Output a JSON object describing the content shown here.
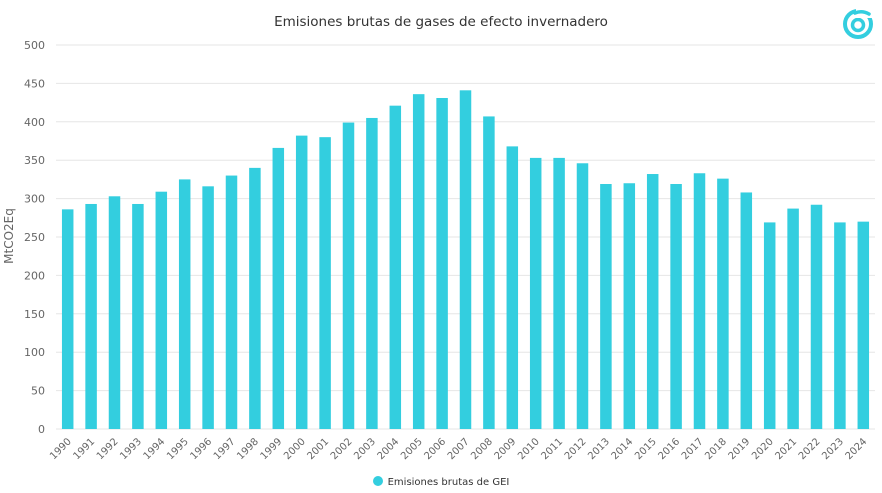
{
  "colors": {
    "bar": "#33cedf",
    "grid": "#e6e6e6",
    "text": "#666666",
    "logo": "#33cedf"
  },
  "logo": {
    "icon": "swirl-logo-icon"
  },
  "chart_data": {
    "type": "bar",
    "title": "Emisiones brutas de gases de efecto invernadero",
    "xlabel": "",
    "ylabel": "MtCO2Eq",
    "ylim": [
      0,
      500
    ],
    "yticks": [
      0,
      50,
      100,
      150,
      200,
      250,
      300,
      350,
      400,
      450,
      500
    ],
    "grid": true,
    "legend_position": "bottom-center",
    "categories": [
      "1990",
      "1991",
      "1992",
      "1993",
      "1994",
      "1995",
      "1996",
      "1997",
      "1998",
      "1999",
      "2000",
      "2001",
      "2002",
      "2003",
      "2004",
      "2005",
      "2006",
      "2007",
      "2008",
      "2009",
      "2010",
      "2011",
      "2012",
      "2013",
      "2014",
      "2015",
      "2016",
      "2017",
      "2018",
      "2019",
      "2020",
      "2021",
      "2022",
      "2023",
      "2024"
    ],
    "series": [
      {
        "name": "Emisiones brutas de GEI",
        "values": [
          286,
          293,
          303,
          293,
          309,
          325,
          316,
          330,
          340,
          366,
          382,
          380,
          399,
          405,
          421,
          436,
          431,
          441,
          407,
          368,
          353,
          353,
          346,
          319,
          320,
          332,
          319,
          333,
          326,
          308,
          269,
          287,
          292,
          269,
          270
        ]
      }
    ]
  }
}
